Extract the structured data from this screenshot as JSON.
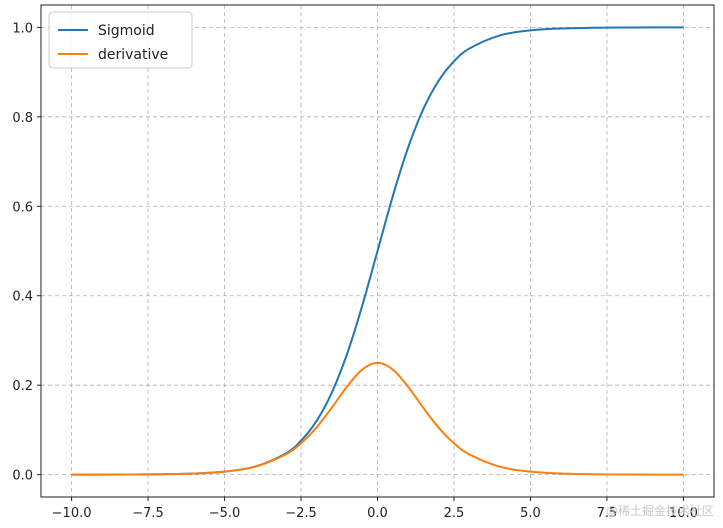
{
  "chart_data": {
    "type": "line",
    "title": "",
    "xlabel": "",
    "ylabel": "",
    "xlim": [
      -11.0,
      11.0
    ],
    "ylim": [
      -0.05,
      1.05
    ],
    "x_ticks": [
      -10.0,
      -7.5,
      -5.0,
      -2.5,
      0.0,
      2.5,
      5.0,
      7.5,
      10.0
    ],
    "x_tick_labels": [
      "−10.0",
      "−7.5",
      "−5.0",
      "−2.5",
      "0.0",
      "2.5",
      "5.0",
      "7.5",
      "10.0"
    ],
    "y_ticks": [
      0.0,
      0.2,
      0.4,
      0.6,
      0.8,
      1.0
    ],
    "y_tick_labels": [
      "0.0",
      "0.2",
      "0.4",
      "0.6",
      "0.8",
      "1.0"
    ],
    "grid": true,
    "legend_position": "top-left",
    "x": [
      -10,
      -9,
      -8,
      -7,
      -6,
      -5,
      -4,
      -3,
      -2.5,
      -2,
      -1.5,
      -1,
      -0.5,
      0,
      0.5,
      1,
      1.5,
      2,
      2.5,
      3,
      4,
      5,
      6,
      7,
      8,
      9,
      10
    ],
    "series": [
      {
        "name": "Sigmoid",
        "color": "#1f77b4",
        "values": [
          0.0,
          0.0001,
          0.0003,
          0.0009,
          0.0025,
          0.0067,
          0.018,
          0.0474,
          0.0759,
          0.1192,
          0.1824,
          0.2689,
          0.3775,
          0.5,
          0.6225,
          0.7311,
          0.8176,
          0.8808,
          0.9241,
          0.9526,
          0.982,
          0.9933,
          0.9975,
          0.9991,
          0.9997,
          0.9999,
          1.0
        ]
      },
      {
        "name": "derivative",
        "color": "#ff7f0e",
        "values": [
          0.0,
          0.0001,
          0.0003,
          0.0009,
          0.0025,
          0.0066,
          0.0177,
          0.0452,
          0.0701,
          0.105,
          0.1491,
          0.1966,
          0.235,
          0.25,
          0.235,
          0.1966,
          0.1491,
          0.105,
          0.0701,
          0.0452,
          0.0177,
          0.0066,
          0.0025,
          0.0009,
          0.0003,
          0.0001,
          0.0
        ]
      }
    ]
  },
  "watermark": "@稀土掘金技术社区"
}
